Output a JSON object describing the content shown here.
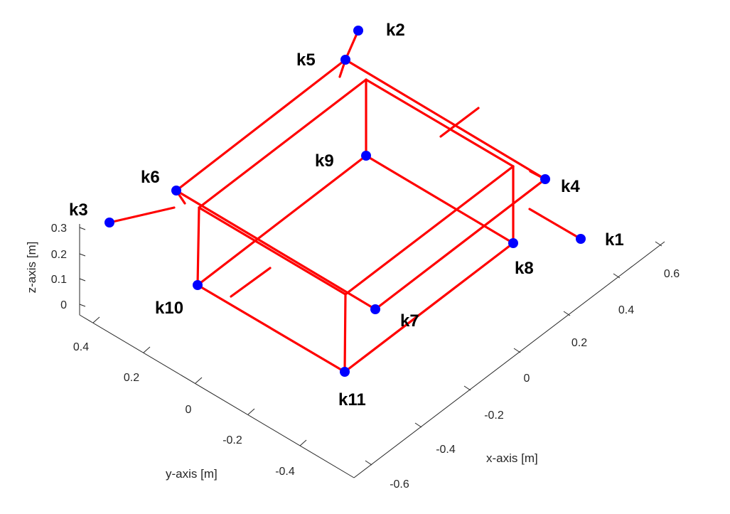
{
  "chart_data": {
    "type": "3d-wireframe",
    "title": "",
    "xlabel": "x-axis [m]",
    "ylabel": "y-axis [m]",
    "zlabel": "z-axis [m]",
    "xticks": [
      "-0.6",
      "-0.4",
      "-0.2",
      "0",
      "0.2",
      "0.4",
      "0.6"
    ],
    "yticks": [
      "-0.4",
      "-0.2",
      "0",
      "0.2",
      "0.4"
    ],
    "zticks": [
      "0",
      "0.1",
      "0.2",
      "0.3"
    ],
    "grid": false,
    "colors": {
      "line": "#ff0000",
      "node": "#0000ff",
      "axis": "#262626"
    },
    "nodes": [
      {
        "label": "k1"
      },
      {
        "label": "k2"
      },
      {
        "label": "k3"
      },
      {
        "label": "k4"
      },
      {
        "label": "k5"
      },
      {
        "label": "k6"
      },
      {
        "label": "k7"
      },
      {
        "label": "k8"
      },
      {
        "label": "k9"
      },
      {
        "label": "k10"
      },
      {
        "label": "k11"
      }
    ]
  }
}
